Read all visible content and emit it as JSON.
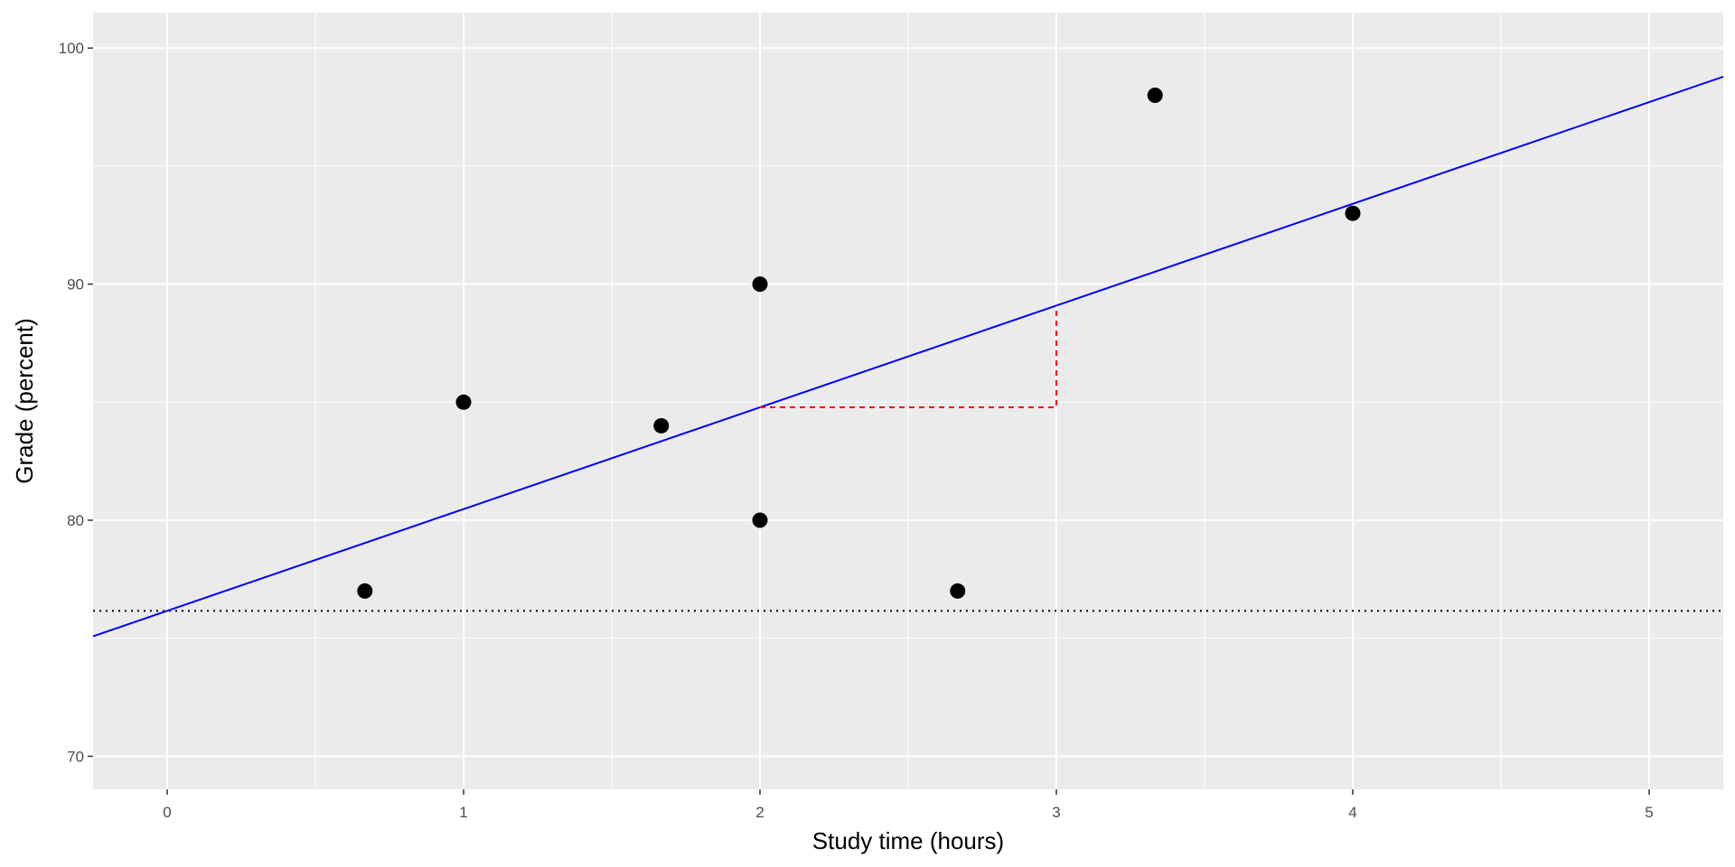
{
  "chart_data": {
    "type": "scatter",
    "title": "",
    "xlabel": "Study time (hours)",
    "ylabel": "Grade (percent)",
    "xlim": [
      -0.25,
      5.25
    ],
    "ylim": [
      68.6,
      101.5
    ],
    "x_ticks": [
      0,
      1,
      2,
      3,
      4,
      5
    ],
    "x_tick_labels": [
      "0",
      "1",
      "2",
      "3",
      "4",
      "5"
    ],
    "y_ticks": [
      70,
      80,
      90,
      100
    ],
    "y_tick_labels": [
      "70",
      "80",
      "90",
      "100"
    ],
    "grid": true,
    "legend": "none",
    "colors": {
      "panel": "#ebebeb",
      "grid": "#ffffff",
      "points": "#000000",
      "regression_line": "#0000ff",
      "slope_guide": "#ff0000",
      "intercept_line": "#000000"
    },
    "points": [
      {
        "x": 0.667,
        "y": 77
      },
      {
        "x": 1.0,
        "y": 85
      },
      {
        "x": 1.667,
        "y": 84
      },
      {
        "x": 2.0,
        "y": 90
      },
      {
        "x": 2.0,
        "y": 80
      },
      {
        "x": 2.667,
        "y": 77
      },
      {
        "x": 3.333,
        "y": 98
      },
      {
        "x": 4.0,
        "y": 93
      }
    ],
    "regression": {
      "intercept": 76.16,
      "slope": 4.31
    },
    "slope_guide": {
      "x_start": 2,
      "x_end": 3
    },
    "intercept_line": {
      "y": 76.16,
      "style": "dotted"
    }
  }
}
